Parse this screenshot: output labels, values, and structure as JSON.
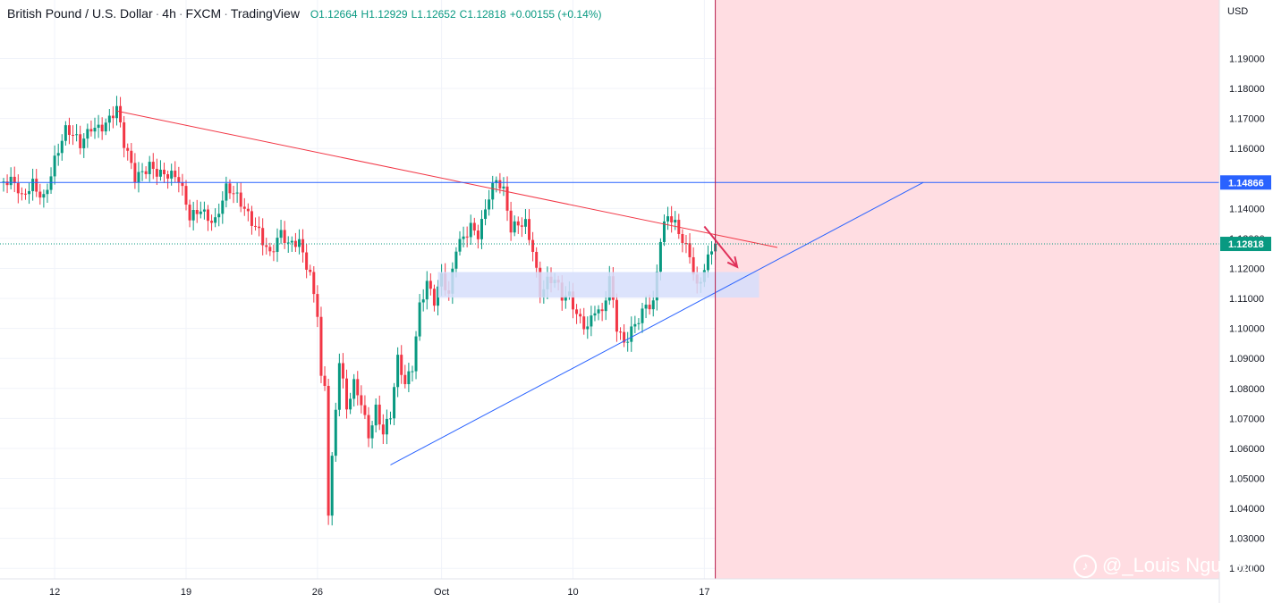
{
  "header": {
    "symbol": "British Pound / U.S. Dollar",
    "interval": "4h",
    "exchange": "FXCM",
    "platform": "TradingView",
    "open": "O1.12664",
    "high": "H1.12929",
    "low": "L1.12652",
    "close": "C1.12818",
    "change": "+0.00155 (+0.14%)"
  },
  "watermark": {
    "text": "@_Louis Nguyen",
    "icon_name": "tiktok-icon"
  },
  "colors": {
    "up": "#089981",
    "down": "#f23645",
    "grid": "#f0f3fa",
    "trendline_upper": "#f23645",
    "trendline_lower": "#2962ff",
    "hline": "#2962ff",
    "zone_fill": "#d6defc",
    "future_zone": "#ffdde2",
    "cursor_line": "#b71c4b",
    "arrow": "#e0315a"
  },
  "chart_data": {
    "type": "candlestick",
    "title": "British Pound / U.S. Dollar",
    "y_axis": {
      "unit": "USD",
      "ticks": [
        "1.19000",
        "1.18000",
        "1.17000",
        "1.16000",
        "1.15000",
        "1.14000",
        "1.13000",
        "1.12000",
        "1.11000",
        "1.10000",
        "1.09000",
        "1.08000",
        "1.07000",
        "1.06000",
        "1.05000",
        "1.04000",
        "1.03000",
        "1.02000"
      ],
      "ylim": [
        1.0165,
        1.2095
      ]
    },
    "x_axis": {
      "ticks": [
        {
          "label": "12",
          "index": 14
        },
        {
          "label": "19",
          "index": 50
        },
        {
          "label": "26",
          "index": 86
        },
        {
          "label": "Oct",
          "index": 120
        },
        {
          "label": "10",
          "index": 156
        },
        {
          "label": "17",
          "index": 192
        }
      ]
    },
    "price_labels": [
      {
        "value": 1.14866,
        "text": "1.14866",
        "color": "#2962ff"
      },
      {
        "value": 1.12818,
        "text": "1.12818",
        "color": "#089981"
      }
    ],
    "last_price": 1.12818,
    "keypoints": [
      {
        "i": 0,
        "p": 1.149
      },
      {
        "i": 3,
        "p": 1.146
      },
      {
        "i": 5,
        "p": 1.141
      },
      {
        "i": 8,
        "p": 1.149
      },
      {
        "i": 11,
        "p": 1.146
      },
      {
        "i": 14,
        "p": 1.157
      },
      {
        "i": 17,
        "p": 1.164
      },
      {
        "i": 21,
        "p": 1.16
      },
      {
        "i": 24,
        "p": 1.169
      },
      {
        "i": 28,
        "p": 1.17
      },
      {
        "i": 31,
        "p": 1.172
      },
      {
        "i": 33,
        "p": 1.159
      },
      {
        "i": 36,
        "p": 1.149
      },
      {
        "i": 40,
        "p": 1.157
      },
      {
        "i": 44,
        "p": 1.152
      },
      {
        "i": 48,
        "p": 1.147
      },
      {
        "i": 51,
        "p": 1.136
      },
      {
        "i": 54,
        "p": 1.142
      },
      {
        "i": 58,
        "p": 1.137
      },
      {
        "i": 61,
        "p": 1.145
      },
      {
        "i": 65,
        "p": 1.14
      },
      {
        "i": 70,
        "p": 1.135
      },
      {
        "i": 73,
        "p": 1.126
      },
      {
        "i": 76,
        "p": 1.13
      },
      {
        "i": 78,
        "p": 1.125
      },
      {
        "i": 81,
        "p": 1.128
      },
      {
        "i": 84,
        "p": 1.12
      },
      {
        "i": 86,
        "p": 1.108
      },
      {
        "i": 87,
        "p": 1.085
      },
      {
        "i": 88,
        "p": 1.082
      },
      {
        "i": 89,
        "p": 1.039
      },
      {
        "i": 90,
        "p": 1.055
      },
      {
        "i": 92,
        "p": 1.087
      },
      {
        "i": 94,
        "p": 1.071
      },
      {
        "i": 96,
        "p": 1.081
      },
      {
        "i": 98,
        "p": 1.077
      },
      {
        "i": 100,
        "p": 1.067
      },
      {
        "i": 102,
        "p": 1.075
      },
      {
        "i": 104,
        "p": 1.065
      },
      {
        "i": 106,
        "p": 1.069
      },
      {
        "i": 108,
        "p": 1.087
      },
      {
        "i": 110,
        "p": 1.08
      },
      {
        "i": 112,
        "p": 1.088
      },
      {
        "i": 114,
        "p": 1.11
      },
      {
        "i": 116,
        "p": 1.118
      },
      {
        "i": 118,
        "p": 1.11
      },
      {
        "i": 120,
        "p": 1.116
      },
      {
        "i": 122,
        "p": 1.108
      },
      {
        "i": 124,
        "p": 1.125
      },
      {
        "i": 126,
        "p": 1.13
      },
      {
        "i": 128,
        "p": 1.136
      },
      {
        "i": 130,
        "p": 1.134
      },
      {
        "i": 133,
        "p": 1.145
      },
      {
        "i": 135,
        "p": 1.148
      },
      {
        "i": 137,
        "p": 1.143
      },
      {
        "i": 139,
        "p": 1.131
      },
      {
        "i": 141,
        "p": 1.135
      },
      {
        "i": 143,
        "p": 1.137
      },
      {
        "i": 145,
        "p": 1.129
      },
      {
        "i": 147,
        "p": 1.113
      },
      {
        "i": 149,
        "p": 1.115
      },
      {
        "i": 151,
        "p": 1.114
      },
      {
        "i": 153,
        "p": 1.108
      },
      {
        "i": 155,
        "p": 1.11
      },
      {
        "i": 157,
        "p": 1.106
      },
      {
        "i": 160,
        "p": 1.103
      },
      {
        "i": 162,
        "p": 1.108
      },
      {
        "i": 164,
        "p": 1.104
      },
      {
        "i": 166,
        "p": 1.114
      },
      {
        "i": 168,
        "p": 1.098
      },
      {
        "i": 170,
        "p": 1.094
      },
      {
        "i": 172,
        "p": 1.101
      },
      {
        "i": 174,
        "p": 1.106
      },
      {
        "i": 176,
        "p": 1.11
      },
      {
        "i": 178,
        "p": 1.108
      },
      {
        "i": 180,
        "p": 1.128
      },
      {
        "i": 182,
        "p": 1.135
      },
      {
        "i": 184,
        "p": 1.133
      },
      {
        "i": 186,
        "p": 1.13
      },
      {
        "i": 188,
        "p": 1.127
      },
      {
        "i": 190,
        "p": 1.116
      },
      {
        "i": 192,
        "p": 1.121
      },
      {
        "i": 193,
        "p": 1.123
      },
      {
        "i": 195,
        "p": 1.1282
      }
    ],
    "annotations": [
      {
        "type": "trendline",
        "color": "#f23645",
        "from": {
          "i": 31,
          "p": 1.1725
        },
        "to": {
          "i": 212,
          "p": 1.127
        }
      },
      {
        "type": "trendline",
        "color": "#2962ff",
        "from": {
          "i": 106,
          "p": 1.0545
        },
        "to": {
          "i": 252,
          "p": 1.1487
        }
      },
      {
        "type": "hline",
        "color": "#2962ff",
        "p": 1.14866
      },
      {
        "type": "zone",
        "color": "#d6defc",
        "from_i": 119,
        "to_i": 207,
        "p_top": 1.1188,
        "p_bottom": 1.1103
      },
      {
        "type": "arrow",
        "color": "#e0315a",
        "from": {
          "i": 192,
          "p": 1.134
        },
        "to": {
          "i": 201,
          "p": 1.1205
        }
      },
      {
        "type": "vline",
        "color": "#b71c4b",
        "i": 195
      },
      {
        "type": "future_zone",
        "color": "#ffdde2",
        "from_i": 195
      }
    ]
  }
}
